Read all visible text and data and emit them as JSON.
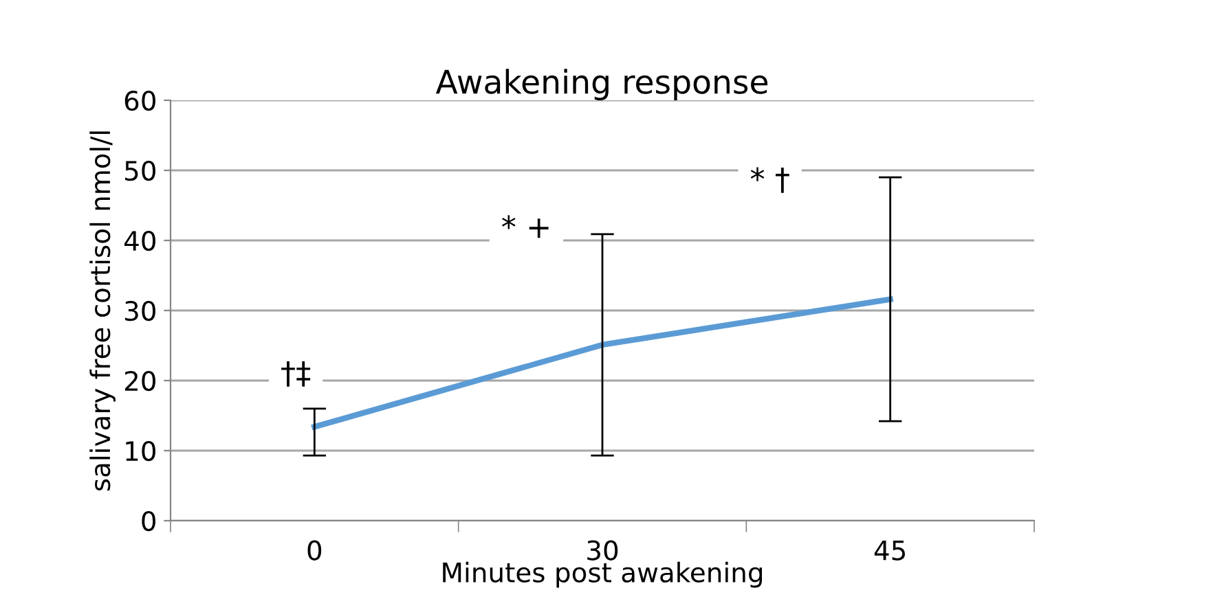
{
  "chart_data": {
    "type": "line",
    "title": "Awakening response",
    "xlabel": "Minutes post awakening",
    "ylabel": "salivary free cortisol nmol/l",
    "categories": [
      "0",
      "30",
      "45"
    ],
    "series": [
      {
        "color": "#5b9bd5",
        "values": [
          13.4,
          25.1,
          31.6
        ],
        "errors": [
          [
            9.3,
            16.0
          ],
          [
            9.3,
            40.9
          ],
          [
            14.2,
            49.0
          ]
        ]
      }
    ],
    "ylim": [
      0,
      60
    ],
    "yticks": [
      0,
      10,
      20,
      30,
      40,
      50,
      60
    ],
    "grid": "y",
    "legend": false,
    "marker": "none",
    "line_style": "solid",
    "annotations": [
      "†‡",
      "* +",
      "* †"
    ]
  }
}
